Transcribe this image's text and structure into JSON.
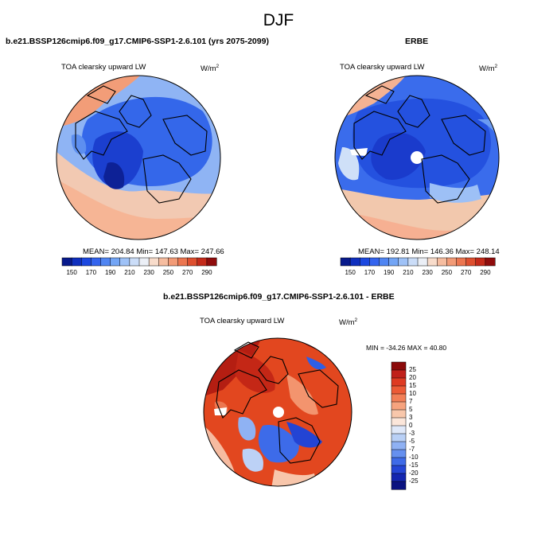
{
  "page": {
    "title": "DJF"
  },
  "panels": {
    "model": {
      "title": "b.e21.BSSP126cmip6.f09_g17.CMIP6-SSP1-2.6.101 (yrs 2075-2099)",
      "variable": "TOA clearsky upward LW",
      "units_base": "W/m",
      "units_exp": "2",
      "stats": "MEAN= 204.84  Min= 147.63  Max= 247.66"
    },
    "obs": {
      "title": "ERBE",
      "variable": "TOA clearsky upward LW",
      "units_base": "W/m",
      "units_exp": "2",
      "stats": "MEAN= 192.81  Min= 146.36  Max= 248.14"
    },
    "diff": {
      "title": "b.e21.BSSP126cmip6.f09_g17.CMIP6-SSP1-2.6.101 - ERBE",
      "variable": "TOA clearsky upward LW",
      "units_base": "W/m",
      "units_exp": "2",
      "stats": "MIN = -34.26 MAX =  40.80"
    }
  },
  "chart_data": [
    {
      "type": "heatmap",
      "projection": "north polar stereographic",
      "title": "b.e21.BSSP126cmip6.f09_g17.CMIP6-SSP1-2.6.101 (yrs 2075-2099)",
      "variable": "TOA clearsky upward LW",
      "units": "W/m2",
      "mean": 204.84,
      "min": 147.63,
      "max": 247.66,
      "colorbar": {
        "orientation": "horizontal",
        "levels": [
          150,
          160,
          170,
          180,
          190,
          200,
          210,
          220,
          230,
          240,
          250,
          260,
          270,
          280,
          290
        ],
        "tick_labels": [
          "150",
          "170",
          "190",
          "210",
          "230",
          "250",
          "270",
          "290"
        ],
        "colors": [
          "#081a8c",
          "#0f2fbe",
          "#1c48e0",
          "#3464ee",
          "#5085f2",
          "#73a5f5",
          "#9fc2f7",
          "#cbddf8",
          "#ebeff6",
          "#f8dccb",
          "#f6bda0",
          "#f29b77",
          "#ec7650",
          "#de4f2f",
          "#c42a1a",
          "#8f0c0c"
        ]
      }
    },
    {
      "type": "heatmap",
      "projection": "north polar stereographic",
      "title": "ERBE",
      "variable": "TOA clearsky upward LW",
      "units": "W/m2",
      "mean": 192.81,
      "min": 146.36,
      "max": 248.14,
      "colorbar": {
        "orientation": "horizontal",
        "levels": [
          150,
          160,
          170,
          180,
          190,
          200,
          210,
          220,
          230,
          240,
          250,
          260,
          270,
          280,
          290
        ],
        "tick_labels": [
          "150",
          "170",
          "190",
          "210",
          "230",
          "250",
          "270",
          "290"
        ],
        "colors": [
          "#081a8c",
          "#0f2fbe",
          "#1c48e0",
          "#3464ee",
          "#5085f2",
          "#73a5f5",
          "#9fc2f7",
          "#cbddf8",
          "#ebeff6",
          "#f8dccb",
          "#f6bda0",
          "#f29b77",
          "#ec7650",
          "#de4f2f",
          "#c42a1a",
          "#8f0c0c"
        ]
      }
    },
    {
      "type": "heatmap",
      "projection": "north polar stereographic",
      "title": "b.e21.BSSP126cmip6.f09_g17.CMIP6-SSP1-2.6.101 - ERBE",
      "variable": "TOA clearsky upward LW",
      "units": "W/m2",
      "min": -34.26,
      "max": 40.8,
      "colorbar": {
        "orientation": "vertical",
        "tick_labels": [
          "25",
          "20",
          "15",
          "10",
          "7",
          "5",
          "3",
          "0",
          "-3",
          "-5",
          "-7",
          "-10",
          "-15",
          "-20",
          "-25"
        ],
        "colors": [
          "#8b0a0a",
          "#c0201a",
          "#de3a22",
          "#ec5a36",
          "#f27f57",
          "#f6a37e",
          "#f8c7ab",
          "#fbe6da",
          "#dfe8f9",
          "#b9d0f6",
          "#8fb1f3",
          "#6690ef",
          "#3f6be8",
          "#2546d6",
          "#1426b0",
          "#0a1280"
        ]
      }
    }
  ]
}
